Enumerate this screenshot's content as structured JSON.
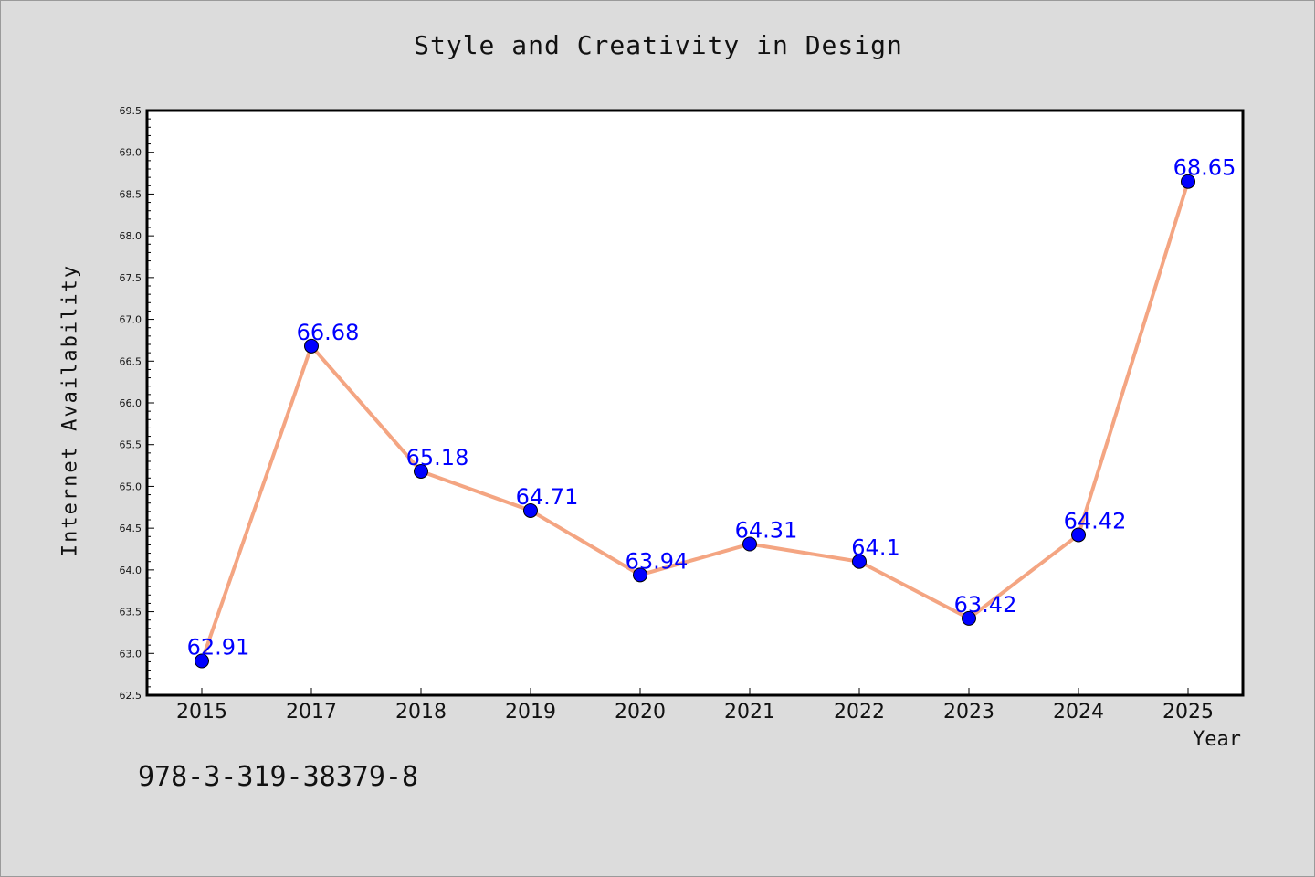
{
  "header": {
    "title": "Style and Creativity in Design"
  },
  "footer": {
    "code": "978-3-319-38379-8"
  },
  "chart_data": {
    "type": "line",
    "title": "Style and Creativity in Design",
    "xlabel": "Year",
    "ylabel": "Internet Availability",
    "categories": [
      "2015",
      "2017",
      "2018",
      "2019",
      "2020",
      "2021",
      "2022",
      "2023",
      "2024",
      "2025"
    ],
    "series": [
      {
        "values": [
          62.91,
          66.68,
          65.18,
          64.71,
          63.94,
          64.31,
          64.1,
          63.42,
          64.42,
          68.65
        ],
        "data_labels": [
          "62.91",
          "66.68",
          "65.18",
          "64.71",
          "63.94",
          "64.31",
          "64.1",
          "63.42",
          "64.42",
          "68.65"
        ]
      }
    ],
    "ylim": [
      62.5,
      69.5
    ],
    "yticks": [
      "62.5",
      "63.0",
      "63.5",
      "64.0",
      "64.5",
      "65.0",
      "65.5",
      "66.0",
      "66.5",
      "67.0",
      "67.5",
      "68.0",
      "68.5",
      "69.0",
      "69.5"
    ],
    "grid": false,
    "legend": "none",
    "colors": {
      "line": "#f4a582",
      "marker": "#0000ff",
      "data_label": "#0000ff",
      "background": "#dcdcdc",
      "plot_area": "#ffffff"
    }
  }
}
